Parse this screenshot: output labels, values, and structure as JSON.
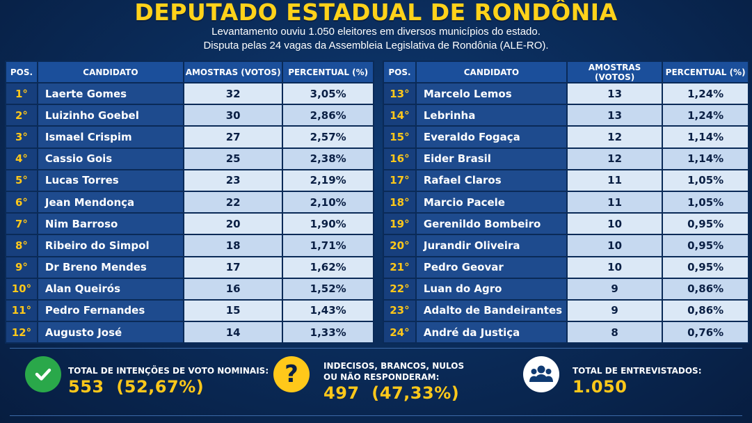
{
  "header": {
    "title": "DEPUTADO ESTADUAL DE RONDÔNIA",
    "subtitle_line1": "Levantamento ouviu 1.050 eleitores em diversos municípios do estado.",
    "subtitle_line2": "Disputa pelas 24 vagas da Assembleia Legislativa de Rondônia (ALE-RO)."
  },
  "table": {
    "headers": [
      "POS.",
      "CANDIDATO",
      "AMOSTRAS (VOTOS)",
      "PERCENTUAL (%)"
    ],
    "left_rows": [
      {
        "pos": "1°",
        "name": "Laerte Gomes",
        "votes": "32",
        "pct": "3,05%"
      },
      {
        "pos": "2°",
        "name": "Luizinho Goebel",
        "votes": "30",
        "pct": "2,86%"
      },
      {
        "pos": "3°",
        "name": "Ismael Crispim",
        "votes": "27",
        "pct": "2,57%"
      },
      {
        "pos": "4°",
        "name": "Cassio Gois",
        "votes": "25",
        "pct": "2,38%"
      },
      {
        "pos": "5°",
        "name": "Lucas Torres",
        "votes": "23",
        "pct": "2,19%"
      },
      {
        "pos": "6°",
        "name": "Jean Mendonça",
        "votes": "22",
        "pct": "2,10%"
      },
      {
        "pos": "7°",
        "name": "Nim Barroso",
        "votes": "20",
        "pct": "1,90%"
      },
      {
        "pos": "8°",
        "name": "Ribeiro do Simpol",
        "votes": "18",
        "pct": "1,71%"
      },
      {
        "pos": "9°",
        "name": "Dr Breno Mendes",
        "votes": "17",
        "pct": "1,62%"
      },
      {
        "pos": "10°",
        "name": "Alan Queirós",
        "votes": "16",
        "pct": "1,52%"
      },
      {
        "pos": "11°",
        "name": "Pedro Fernandes",
        "votes": "15",
        "pct": "1,43%"
      },
      {
        "pos": "12°",
        "name": "Augusto José",
        "votes": "14",
        "pct": "1,33%"
      }
    ],
    "right_rows": [
      {
        "pos": "13°",
        "name": "Marcelo Lemos",
        "votes": "13",
        "pct": "1,24%"
      },
      {
        "pos": "14°",
        "name": "Lebrinha",
        "votes": "13",
        "pct": "1,24%"
      },
      {
        "pos": "15°",
        "name": "Everaldo Fogaça",
        "votes": "12",
        "pct": "1,14%"
      },
      {
        "pos": "16°",
        "name": "Eider Brasil",
        "votes": "12",
        "pct": "1,14%"
      },
      {
        "pos": "17°",
        "name": "Rafael Claros",
        "votes": "11",
        "pct": "1,05%"
      },
      {
        "pos": "18°",
        "name": "Marcio Pacele",
        "votes": "11",
        "pct": "1,05%"
      },
      {
        "pos": "19°",
        "name": "Gerenildo Bombeiro",
        "votes": "10",
        "pct": "0,95%"
      },
      {
        "pos": "20°",
        "name": "Jurandir Oliveira",
        "votes": "10",
        "pct": "0,95%"
      },
      {
        "pos": "21°",
        "name": "Pedro Geovar",
        "votes": "10",
        "pct": "0,95%"
      },
      {
        "pos": "22°",
        "name": "Luan do Agro",
        "votes": "9",
        "pct": "0,86%"
      },
      {
        "pos": "23°",
        "name": "Adalto de Bandeirantes",
        "votes": "9",
        "pct": "0,86%"
      },
      {
        "pos": "24°",
        "name": "André da Justiça",
        "votes": "8",
        "pct": "0,76%"
      }
    ]
  },
  "stats": {
    "nominal": {
      "label": "TOTAL DE INTENÇÕES DE VOTO NOMINAIS:",
      "value": "553  (52,67%)",
      "icon": "check-icon",
      "color": "#2aa84a"
    },
    "undecided": {
      "label_line1": "INDECISOS, BRANCOS, NULOS",
      "label_line2": "OU NÃO RESPONDERAM:",
      "value": "497  (47,33%)",
      "icon": "question-icon",
      "color": "#ffc81a"
    },
    "total": {
      "label": "TOTAL DE ENTREVISTADOS:",
      "value": "1.050",
      "icon": "people-icon",
      "color": "#ffffff"
    }
  },
  "colors": {
    "title": "#ffd21a",
    "background": "#0a2a57",
    "header_cell": "#1b4f9b",
    "light_cell": "#dbe8f6"
  }
}
